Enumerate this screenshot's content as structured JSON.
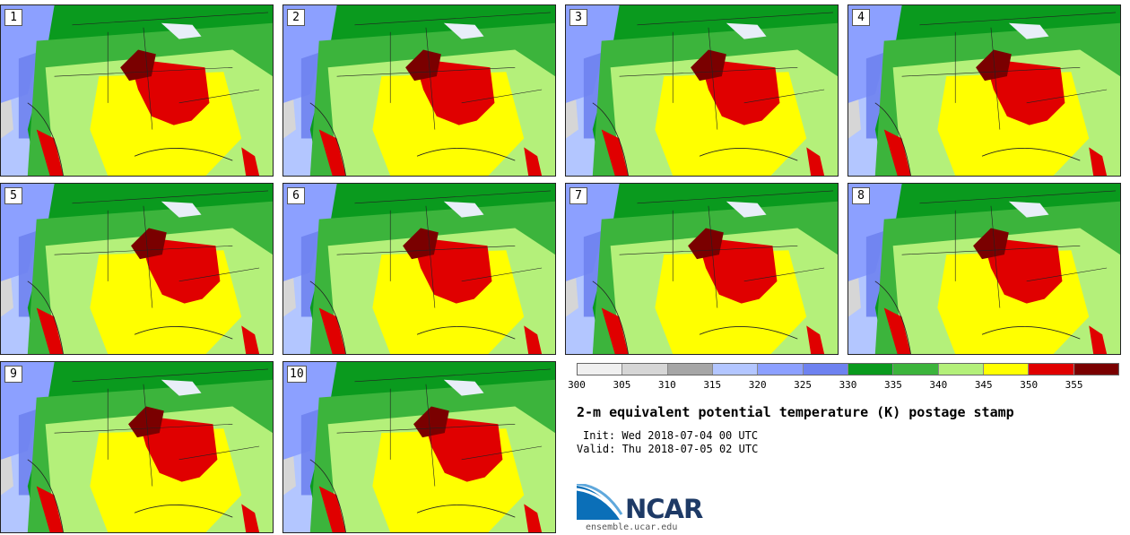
{
  "panels": [
    {
      "label": "1"
    },
    {
      "label": "2"
    },
    {
      "label": "3"
    },
    {
      "label": "4"
    },
    {
      "label": "5"
    },
    {
      "label": "6"
    },
    {
      "label": "7"
    },
    {
      "label": "8"
    },
    {
      "label": "9"
    },
    {
      "label": "10"
    }
  ],
  "colorbar": {
    "colors": [
      "#f0f0f0",
      "#d6d6d6",
      "#a6a6a6",
      "#b3c6ff",
      "#8ca0ff",
      "#6e82f0",
      "#0a9a1e",
      "#3cb43c",
      "#b4f07a",
      "#ffff00",
      "#e00000",
      "#7a0000"
    ],
    "ticks": [
      "300",
      "305",
      "310",
      "315",
      "320",
      "325",
      "330",
      "335",
      "340",
      "345",
      "350",
      "355"
    ]
  },
  "title": "2-m equivalent potential temperature (K) postage stamp",
  "init": "Init: Wed 2018-07-04 00 UTC",
  "valid": "Valid: Thu 2018-07-05 02 UTC",
  "logo": {
    "text": "NCAR",
    "url": "ensemble.ucar.edu"
  }
}
